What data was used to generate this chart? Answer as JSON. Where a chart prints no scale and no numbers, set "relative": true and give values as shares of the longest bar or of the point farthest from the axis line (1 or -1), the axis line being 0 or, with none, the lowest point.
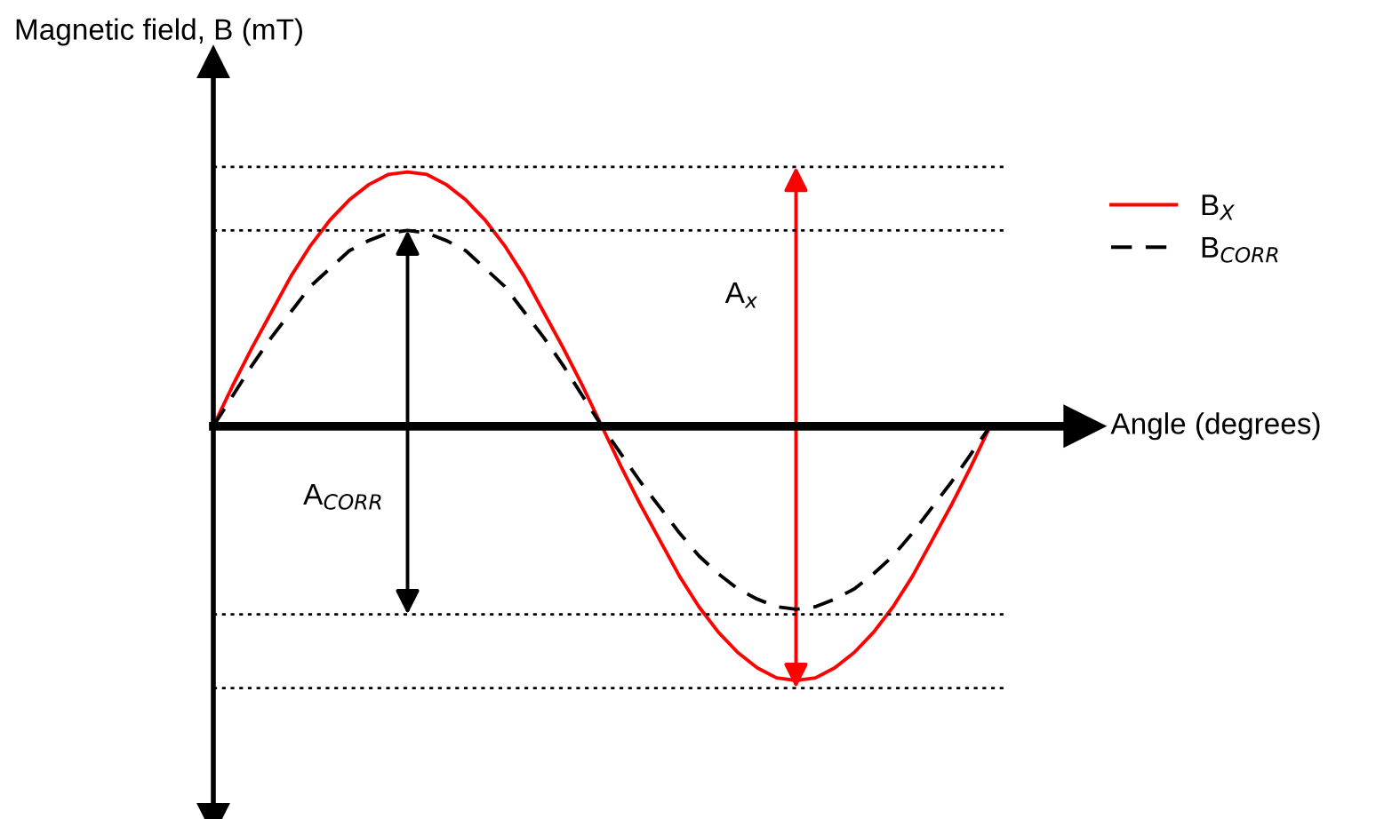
{
  "chart_data": {
    "type": "line",
    "relative": true,
    "ylabel": "Magnetic field, B (mT)",
    "xlabel": "Angle (degrees)",
    "categories": [
      null,
      null,
      null,
      null,
      null,
      null,
      null,
      null,
      null,
      null,
      null,
      null,
      null,
      null,
      null,
      null,
      null,
      null,
      null,
      null,
      null,
      null,
      null,
      null,
      null,
      null,
      null,
      null,
      null,
      null,
      null,
      null,
      null,
      null,
      null,
      null,
      null,
      null,
      null,
      null,
      null
    ],
    "series": [
      {
        "name": "B$_{X}$",
        "color": "#ff0000",
        "line_style": "solid",
        "values": [
          0,
          0.16,
          0.31,
          0.45,
          0.59,
          0.71,
          0.81,
          0.89,
          0.95,
          0.99,
          1,
          0.99,
          0.95,
          0.89,
          0.81,
          0.71,
          0.59,
          0.45,
          0.31,
          0.16,
          0,
          -0.16,
          -0.31,
          -0.45,
          -0.59,
          -0.71,
          -0.81,
          -0.89,
          -0.95,
          -0.99,
          -1,
          -0.99,
          -0.95,
          -0.89,
          -0.81,
          -0.71,
          -0.59,
          -0.45,
          -0.31,
          -0.16,
          0
        ]
      },
      {
        "name": "B$_{CORR}$",
        "color": "#000000",
        "line_style": "dashed",
        "values": [
          0,
          0.12,
          0.24,
          0.35,
          0.45,
          0.55,
          0.62,
          0.69,
          0.73,
          0.76,
          0.77,
          0.76,
          0.73,
          0.69,
          0.62,
          0.55,
          0.45,
          0.35,
          0.24,
          0.12,
          0,
          -0.11,
          -0.22,
          -0.32,
          -0.42,
          -0.51,
          -0.58,
          -0.64,
          -0.68,
          -0.71,
          -0.72,
          -0.71,
          -0.68,
          -0.64,
          -0.58,
          -0.51,
          -0.42,
          -0.32,
          -0.22,
          -0.11,
          0
        ]
      }
    ],
    "ref_lines": [
      {
        "axis": "y",
        "value": 1.02,
        "color": "#000000",
        "line_style": "dotted"
      },
      {
        "axis": "y",
        "value": 0.77,
        "color": "#000000",
        "line_style": "dotted"
      },
      {
        "axis": "y",
        "value": -0.74,
        "color": "#000000",
        "line_style": "dotted"
      },
      {
        "axis": "y",
        "value": -1.03,
        "color": "#000000",
        "line_style": "dotted"
      }
    ],
    "annotations": [
      "A$_{x}$",
      "A$_{CORR}$"
    ],
    "legend": "right",
    "marker": "none"
  }
}
